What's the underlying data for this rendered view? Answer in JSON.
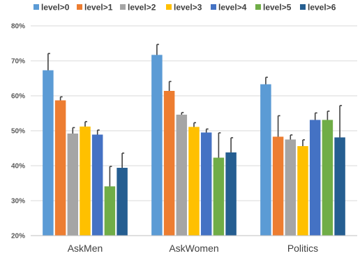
{
  "chart_data": {
    "type": "bar",
    "categories": [
      "AskMen",
      "AskWomen",
      "Politics"
    ],
    "ylim": [
      20,
      80
    ],
    "yticks": [
      20,
      30,
      40,
      50,
      60,
      70,
      80
    ],
    "ytick_format": "percent",
    "grid": true,
    "legend_position": "top",
    "series": [
      {
        "name": "level>0",
        "color": "#5b9bd5",
        "values": [
          67.3,
          71.7,
          63.3
        ],
        "errors": [
          4.8,
          3.0,
          2.0
        ]
      },
      {
        "name": "level>1",
        "color": "#ed7d31",
        "values": [
          58.7,
          61.4,
          48.3
        ],
        "errors": [
          1.0,
          2.7,
          6.0
        ]
      },
      {
        "name": "level>2",
        "color": "#a5a5a5",
        "values": [
          49.2,
          54.6,
          47.5
        ],
        "errors": [
          1.7,
          0.6,
          1.3
        ]
      },
      {
        "name": "level>3",
        "color": "#ffc000",
        "values": [
          51.2,
          51.1,
          45.6
        ],
        "errors": [
          1.4,
          1.2,
          1.8
        ]
      },
      {
        "name": "level>4",
        "color": "#4472c4",
        "values": [
          48.9,
          49.5,
          53.1
        ],
        "errors": [
          1.3,
          1.0,
          2.0
        ]
      },
      {
        "name": "level>5",
        "color": "#70ad47",
        "values": [
          34.1,
          42.3,
          53.1
        ],
        "errors": [
          5.7,
          7.1,
          2.5
        ]
      },
      {
        "name": "level>6",
        "color": "#255e91",
        "values": [
          39.4,
          43.8,
          48.1
        ],
        "errors": [
          4.2,
          4.2,
          9.1
        ]
      }
    ]
  }
}
